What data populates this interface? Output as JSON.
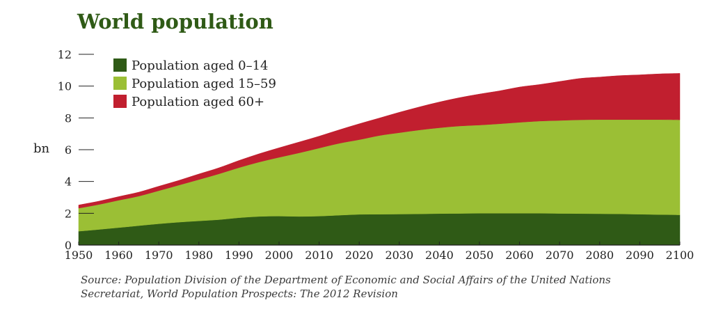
{
  "chart_data": {
    "type": "area",
    "stacked": true,
    "title": "World population",
    "xlabel": "",
    "ylabel": "bn",
    "xlim": [
      1950,
      2100
    ],
    "ylim": [
      0,
      12
    ],
    "x_ticks": [
      1950,
      1960,
      1970,
      1980,
      1990,
      2000,
      2010,
      2020,
      2030,
      2040,
      2050,
      2060,
      2070,
      2080,
      2090,
      2100
    ],
    "y_ticks": [
      0,
      2,
      4,
      6,
      8,
      10,
      12
    ],
    "grid": false,
    "legend_position": "top-left",
    "x": [
      1950,
      1955,
      1960,
      1965,
      1970,
      1975,
      1980,
      1985,
      1990,
      1995,
      2000,
      2005,
      2010,
      2015,
      2020,
      2025,
      2030,
      2035,
      2040,
      2045,
      2050,
      2055,
      2060,
      2065,
      2070,
      2075,
      2080,
      2085,
      2090,
      2095,
      2100
    ],
    "series": [
      {
        "name": "Population aged 0–14",
        "color": "#2f5a16",
        "values": [
          0.87,
          0.98,
          1.1,
          1.22,
          1.34,
          1.44,
          1.52,
          1.6,
          1.72,
          1.8,
          1.82,
          1.8,
          1.82,
          1.88,
          1.93,
          1.94,
          1.95,
          1.96,
          1.98,
          1.99,
          2.0,
          2.0,
          2.0,
          2.0,
          1.99,
          1.98,
          1.97,
          1.96,
          1.94,
          1.92,
          1.9
        ]
      },
      {
        "name": "Population aged 15–59",
        "color": "#9bbf35",
        "values": [
          1.45,
          1.57,
          1.72,
          1.86,
          2.08,
          2.33,
          2.6,
          2.88,
          3.15,
          3.42,
          3.7,
          4.0,
          4.28,
          4.52,
          4.7,
          4.95,
          5.12,
          5.28,
          5.4,
          5.5,
          5.55,
          5.63,
          5.72,
          5.8,
          5.85,
          5.9,
          5.92,
          5.93,
          5.95,
          5.97,
          5.98
        ]
      },
      {
        "name": "Population aged 60+",
        "color": "#c11f2f",
        "values": [
          0.2,
          0.21,
          0.23,
          0.25,
          0.28,
          0.3,
          0.35,
          0.38,
          0.45,
          0.52,
          0.6,
          0.68,
          0.75,
          0.85,
          1.0,
          1.1,
          1.28,
          1.45,
          1.62,
          1.78,
          1.95,
          2.07,
          2.22,
          2.3,
          2.45,
          2.6,
          2.68,
          2.77,
          2.82,
          2.88,
          2.92
        ]
      }
    ]
  },
  "source": {
    "line1": "Source: Population Division of the Department of Economic and Social Affairs of the United Nations",
    "line2": "Secretariat, World Population Prospects: The 2012 Revision"
  }
}
